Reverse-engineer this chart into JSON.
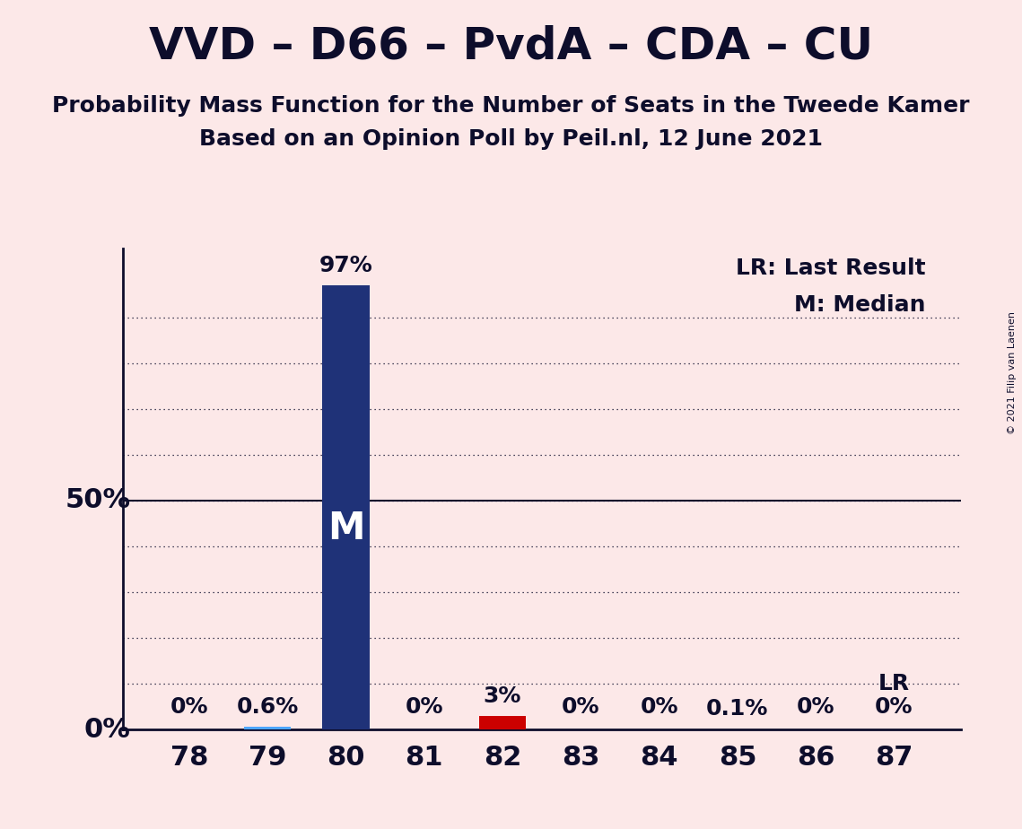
{
  "title": "VVD – D66 – PvdA – CDA – CU",
  "subtitle1": "Probability Mass Function for the Number of Seats in the Tweede Kamer",
  "subtitle2": "Based on an Opinion Poll by Peil.nl, 12 June 2021",
  "copyright": "© 2021 Filip van Laenen",
  "background_color": "#fce8e8",
  "categories": [
    78,
    79,
    80,
    81,
    82,
    83,
    84,
    85,
    86,
    87
  ],
  "values": [
    0.0,
    0.6,
    97.0,
    0.0,
    3.0,
    0.0,
    0.0,
    0.1,
    0.0,
    0.0
  ],
  "bar_colors": [
    "#1f3278",
    "#4da6ff",
    "#1f3278",
    "#1f3278",
    "#cc0000",
    "#1f3278",
    "#1f3278",
    "#1f3278",
    "#1f3278",
    "#1f3278"
  ],
  "median_bar_index": 2,
  "lr_bar_index": 9,
  "labels": [
    "0%",
    "0.6%",
    "97%",
    "0%",
    "3%",
    "0%",
    "0%",
    "0.1%",
    "0%",
    "0%"
  ],
  "ylabel_50": "50%",
  "ylabel_0": "0%",
  "legend_lr": "LR: Last Result",
  "legend_m": "M: Median",
  "lr_label": "LR",
  "m_label": "M",
  "ylim": [
    0,
    105
  ],
  "title_fontsize": 36,
  "subtitle_fontsize": 18,
  "axis_fontsize": 22,
  "label_fontsize": 18,
  "bar_width": 0.6,
  "text_color": "#0d0d2b",
  "dotted_line_positions": [
    10,
    20,
    30,
    40,
    50,
    60,
    70,
    80,
    90
  ]
}
